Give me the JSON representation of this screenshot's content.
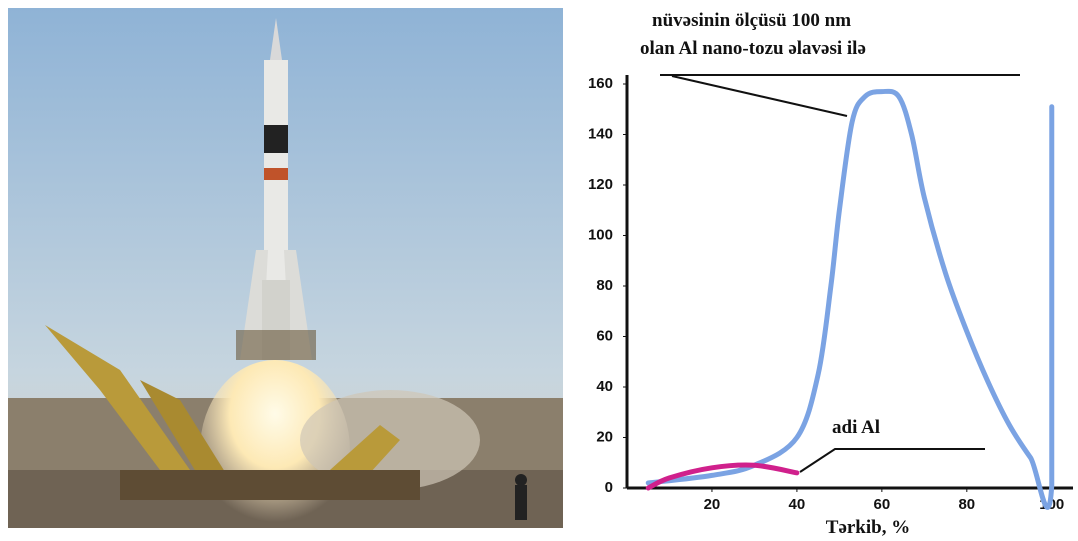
{
  "chart_data": {
    "type": "line",
    "x_label": "Tərkib, %",
    "annotations": [
      "nüvəsinin ölçüsü 100 nm",
      "olan Al nano-tozu əlavəsi ilə",
      "adi Al"
    ],
    "series": [
      {
        "color": "#7ba3e3",
        "x": [
          5,
          20,
          30,
          40,
          45,
          48,
          50,
          53,
          56,
          60,
          64,
          67,
          70,
          75,
          80,
          85,
          90,
          95,
          100,
          100
        ],
        "values": [
          2,
          5,
          9,
          20,
          45,
          80,
          110,
          145,
          155,
          157,
          155,
          140,
          115,
          85,
          62,
          42,
          25,
          12,
          1,
          151
        ]
      },
      {
        "color": "#d0208c",
        "x": [
          5,
          10,
          20,
          30,
          40
        ],
        "values": [
          0,
          4,
          8,
          9,
          6
        ]
      }
    ],
    "xlim": [
      0,
      105
    ],
    "xticks": [
      20,
      40,
      60,
      80,
      100
    ],
    "ylim": [
      0,
      162
    ],
    "yticks": [
      0,
      20,
      40,
      60,
      80,
      100,
      120,
      140,
      160
    ],
    "grid": false
  }
}
